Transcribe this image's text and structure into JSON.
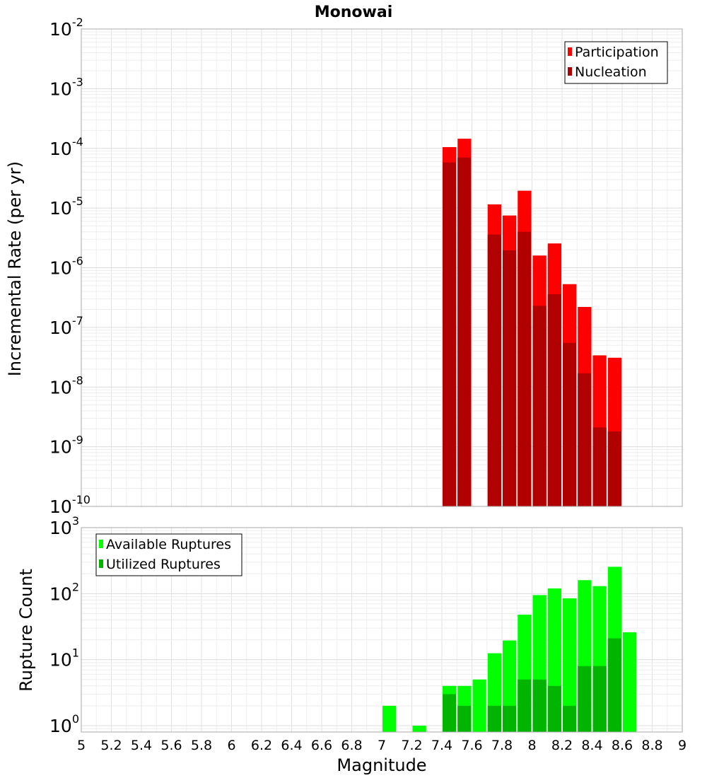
{
  "chart_data": [
    {
      "type": "bar",
      "title": "Monowai",
      "xlabel": "",
      "ylabel": "Incremental Rate (per yr)",
      "y_scale": "log",
      "ylim": [
        1e-10,
        0.01
      ],
      "xlim": [
        5,
        9
      ],
      "grid": true,
      "legend_placement": "top-right",
      "y_tick_labels": [
        {
          "base": "10",
          "exp": "-10"
        },
        {
          "base": "10",
          "exp": "-9"
        },
        {
          "base": "10",
          "exp": "-8"
        },
        {
          "base": "10",
          "exp": "-7"
        },
        {
          "base": "10",
          "exp": "-6"
        },
        {
          "base": "10",
          "exp": "-5"
        },
        {
          "base": "10",
          "exp": "-4"
        },
        {
          "base": "10",
          "exp": "-3"
        },
        {
          "base": "10",
          "exp": "-2"
        }
      ],
      "bar_width": 0.1,
      "series": [
        {
          "name": "Participation",
          "color": "#ff0000",
          "points": [
            [
              7.45,
              0.000105
            ],
            [
              7.55,
              0.000145
            ],
            [
              7.75,
              1.15e-05
            ],
            [
              7.85,
              7.5e-06
            ],
            [
              7.95,
              1.95e-05
            ],
            [
              8.05,
              1.6e-06
            ],
            [
              8.15,
              2.55e-06
            ],
            [
              8.25,
              5.3e-07
            ],
            [
              8.35,
              2.2e-07
            ],
            [
              8.45,
              3.4e-08
            ],
            [
              8.55,
              3.1e-08
            ]
          ]
        },
        {
          "name": "Nucleation",
          "color": "#b00000",
          "points": [
            [
              7.45,
              5.8e-05
            ],
            [
              7.55,
              7e-05
            ],
            [
              7.75,
              3.6e-06
            ],
            [
              7.85,
              1.95e-06
            ],
            [
              7.95,
              4e-06
            ],
            [
              8.05,
              2.3e-07
            ],
            [
              8.15,
              3.6e-07
            ],
            [
              8.25,
              5.5e-08
            ],
            [
              8.35,
              1.7e-08
            ],
            [
              8.45,
              2.1e-09
            ],
            [
              8.55,
              1.8e-09
            ]
          ]
        }
      ]
    },
    {
      "type": "bar",
      "title": "",
      "xlabel": "Magnitude",
      "ylabel": "Rupture Count",
      "y_scale": "log",
      "ylim": [
        0.8,
        1000
      ],
      "xlim": [
        5,
        9
      ],
      "grid": true,
      "legend_placement": "top-left",
      "y_tick_labels": [
        {
          "value": 1,
          "base": "10",
          "exp": "0"
        },
        {
          "value": 10,
          "base": "10",
          "exp": "1"
        },
        {
          "value": 100,
          "base": "10",
          "exp": "2"
        },
        {
          "value": 1000,
          "base": "10",
          "exp": "3"
        }
      ],
      "x_ticks": [
        "5",
        "5.2",
        "5.4",
        "5.6",
        "5.8",
        "6",
        "6.2",
        "6.4",
        "6.6",
        "6.8",
        "7",
        "7.2",
        "7.4",
        "7.6",
        "7.8",
        "8",
        "8.2",
        "8.4",
        "8.6",
        "8.8",
        "9"
      ],
      "bar_width": 0.1,
      "series": [
        {
          "name": "Available Ruptures",
          "color": "#00ff00",
          "points": [
            [
              7.05,
              2
            ],
            [
              7.25,
              1
            ],
            [
              7.45,
              4
            ],
            [
              7.55,
              4
            ],
            [
              7.65,
              5
            ],
            [
              7.75,
              12.5
            ],
            [
              7.85,
              19.5
            ],
            [
              7.95,
              48
            ],
            [
              8.05,
              95
            ],
            [
              8.15,
              120
            ],
            [
              8.25,
              85
            ],
            [
              8.35,
              160
            ],
            [
              8.45,
              130
            ],
            [
              8.55,
              255
            ],
            [
              8.65,
              26
            ]
          ]
        },
        {
          "name": "Utilized Ruptures",
          "color": "#00b400",
          "points": [
            [
              7.45,
              3
            ],
            [
              7.55,
              2
            ],
            [
              7.75,
              2
            ],
            [
              7.85,
              2
            ],
            [
              7.95,
              5
            ],
            [
              8.05,
              5
            ],
            [
              8.15,
              4
            ],
            [
              8.25,
              2
            ],
            [
              8.35,
              8
            ],
            [
              8.45,
              8
            ],
            [
              8.55,
              21
            ]
          ]
        }
      ]
    }
  ]
}
